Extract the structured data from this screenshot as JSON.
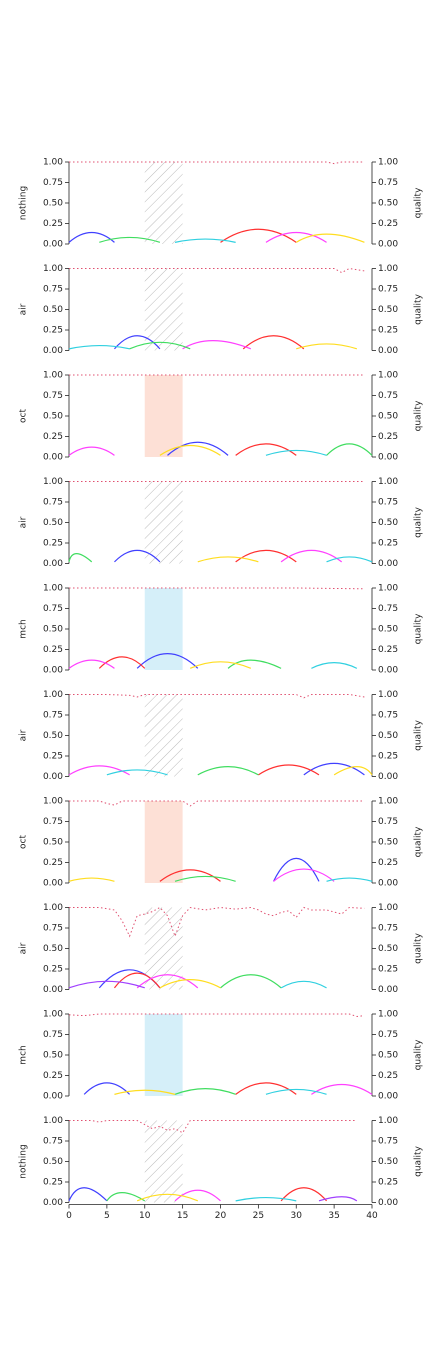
{
  "figure": {
    "y2label": "quality",
    "xticks": [
      "0",
      "5",
      "10",
      "15",
      "20",
      "25",
      "30",
      "35",
      "40"
    ],
    "yticks": [
      "0.00",
      "0.25",
      "0.50",
      "0.75",
      "1.00"
    ]
  },
  "palette": [
    "#4040ff",
    "#ff3030",
    "#ff40ff",
    "#40dd60",
    "#ffdd20",
    "#30d0e0",
    "#a040ff",
    "#ff8c30",
    "#20b080",
    "#d02060"
  ],
  "quality_color": "#e05070",
  "region_colors": {
    "hatch": "#bbbbbb",
    "oct": "#fde0d6",
    "mch": "#d5eff9"
  },
  "chart_data": [
    {
      "type": "line",
      "ylabel": "nothing",
      "xlim": [
        0,
        40
      ],
      "ylim": [
        0,
        1
      ],
      "y2lim": [
        0,
        1
      ],
      "region": {
        "x": [
          10,
          15
        ],
        "style": "hatch"
      },
      "quality": {
        "x": [
          0,
          5,
          10,
          15,
          20,
          25,
          30,
          34,
          35,
          36,
          39
        ],
        "y": [
          1,
          1,
          1,
          1,
          1,
          1,
          1,
          1,
          0.98,
          1,
          1
        ]
      },
      "series": [
        {
          "x": [
            0,
            3,
            6
          ],
          "y": [
            0.02,
            0.14,
            0.02
          ]
        },
        {
          "x": [
            20,
            25,
            30
          ],
          "y": [
            0.02,
            0.18,
            0.02
          ]
        },
        {
          "x": [
            26,
            30,
            34
          ],
          "y": [
            0.02,
            0.14,
            0.02
          ]
        },
        {
          "x": [
            4,
            8,
            12
          ],
          "y": [
            0.02,
            0.08,
            0.02
          ]
        },
        {
          "x": [
            30,
            34,
            39
          ],
          "y": [
            0.02,
            0.12,
            0.02
          ]
        },
        {
          "x": [
            14,
            18,
            22
          ],
          "y": [
            0.02,
            0.06,
            0.02
          ]
        }
      ]
    },
    {
      "type": "line",
      "ylabel": "air",
      "xlim": [
        0,
        40
      ],
      "ylim": [
        0,
        1
      ],
      "y2lim": [
        0,
        1
      ],
      "region": {
        "x": [
          10,
          15
        ],
        "style": "hatch"
      },
      "quality": {
        "x": [
          0,
          5,
          10,
          15,
          20,
          25,
          30,
          35,
          36,
          37,
          39
        ],
        "y": [
          1,
          1,
          1,
          1,
          1,
          1,
          1,
          1,
          0.95,
          1,
          0.97
        ]
      },
      "series": [
        {
          "x": [
            6,
            9,
            12
          ],
          "y": [
            0.02,
            0.18,
            0.02
          ]
        },
        {
          "x": [
            23,
            27,
            31
          ],
          "y": [
            0.02,
            0.18,
            0.02
          ]
        },
        {
          "x": [
            15,
            19,
            24
          ],
          "y": [
            0.02,
            0.12,
            0.02
          ]
        },
        {
          "x": [
            8,
            12,
            16
          ],
          "y": [
            0.02,
            0.1,
            0.02
          ]
        },
        {
          "x": [
            30,
            34,
            38
          ],
          "y": [
            0.02,
            0.08,
            0.02
          ]
        },
        {
          "x": [
            0,
            4,
            8
          ],
          "y": [
            0.02,
            0.06,
            0.02
          ]
        }
      ]
    },
    {
      "type": "line",
      "ylabel": "oct",
      "xlim": [
        0,
        40
      ],
      "ylim": [
        0,
        1
      ],
      "y2lim": [
        0,
        1
      ],
      "region": {
        "x": [
          10,
          15
        ],
        "style": "oct"
      },
      "quality": {
        "x": [
          0,
          10,
          20,
          30,
          39
        ],
        "y": [
          1,
          1,
          1,
          1,
          1
        ]
      },
      "series": [
        {
          "x": [
            13,
            17,
            21
          ],
          "y": [
            0.02,
            0.18,
            0.02
          ]
        },
        {
          "x": [
            22,
            26,
            30
          ],
          "y": [
            0.02,
            0.16,
            0.02
          ]
        },
        {
          "x": [
            0,
            3,
            6
          ],
          "y": [
            0.02,
            0.12,
            0.02
          ]
        },
        {
          "x": [
            34,
            37,
            40
          ],
          "y": [
            0.02,
            0.16,
            0.02
          ]
        },
        {
          "x": [
            12,
            16,
            20
          ],
          "y": [
            0.02,
            0.14,
            0.02
          ]
        },
        {
          "x": [
            26,
            30,
            34
          ],
          "y": [
            0.02,
            0.08,
            0.02
          ]
        }
      ]
    },
    {
      "type": "line",
      "ylabel": "air",
      "xlim": [
        0,
        40
      ],
      "ylim": [
        0,
        1
      ],
      "y2lim": [
        0,
        1
      ],
      "region": {
        "x": [
          10,
          15
        ],
        "style": "hatch"
      },
      "quality": {
        "x": [
          0,
          10,
          20,
          30,
          39
        ],
        "y": [
          1,
          1,
          1,
          1,
          1
        ]
      },
      "series": [
        {
          "x": [
            6,
            9,
            12
          ],
          "y": [
            0.02,
            0.16,
            0.02
          ]
        },
        {
          "x": [
            22,
            26,
            30
          ],
          "y": [
            0.02,
            0.16,
            0.02
          ]
        },
        {
          "x": [
            28,
            32,
            36
          ],
          "y": [
            0.02,
            0.16,
            0.02
          ]
        },
        {
          "x": [
            0,
            1,
            3
          ],
          "y": [
            0.02,
            0.12,
            0.02
          ]
        },
        {
          "x": [
            17,
            21,
            25
          ],
          "y": [
            0.02,
            0.08,
            0.02
          ]
        },
        {
          "x": [
            34,
            37,
            40
          ],
          "y": [
            0.02,
            0.08,
            0.02
          ]
        }
      ]
    },
    {
      "type": "line",
      "ylabel": "mch",
      "xlim": [
        0,
        40
      ],
      "ylim": [
        0,
        1
      ],
      "y2lim": [
        0,
        1
      ],
      "region": {
        "x": [
          10,
          15
        ],
        "style": "mch"
      },
      "quality": {
        "x": [
          0,
          10,
          20,
          30,
          39
        ],
        "y": [
          1,
          1,
          1,
          1,
          0.99
        ]
      },
      "series": [
        {
          "x": [
            9,
            13,
            17
          ],
          "y": [
            0.02,
            0.2,
            0.02
          ]
        },
        {
          "x": [
            4,
            7,
            10
          ],
          "y": [
            0.02,
            0.16,
            0.02
          ]
        },
        {
          "x": [
            0,
            3,
            6
          ],
          "y": [
            0.02,
            0.12,
            0.02
          ]
        },
        {
          "x": [
            21,
            24,
            28
          ],
          "y": [
            0.02,
            0.12,
            0.02
          ]
        },
        {
          "x": [
            16,
            20,
            24
          ],
          "y": [
            0.02,
            0.1,
            0.02
          ]
        },
        {
          "x": [
            32,
            35,
            38
          ],
          "y": [
            0.02,
            0.09,
            0.02
          ]
        }
      ]
    },
    {
      "type": "line",
      "ylabel": "air",
      "xlim": [
        0,
        40
      ],
      "ylim": [
        0,
        1
      ],
      "y2lim": [
        0,
        1
      ],
      "region": {
        "x": [
          10,
          15
        ],
        "style": "hatch"
      },
      "quality": {
        "x": [
          0,
          5,
          8,
          9,
          10,
          14,
          20,
          30,
          31,
          32,
          35,
          37,
          39
        ],
        "y": [
          1,
          1,
          0.99,
          0.97,
          1,
          1,
          1,
          1,
          0.96,
          1,
          1,
          1,
          0.97
        ]
      },
      "series": [
        {
          "x": [
            31,
            35,
            39
          ],
          "y": [
            0.02,
            0.16,
            0.02
          ]
        },
        {
          "x": [
            25,
            29,
            33
          ],
          "y": [
            0.02,
            0.14,
            0.02
          ]
        },
        {
          "x": [
            0,
            4,
            8
          ],
          "y": [
            0.02,
            0.13,
            0.02
          ]
        },
        {
          "x": [
            17,
            21,
            25
          ],
          "y": [
            0.02,
            0.12,
            0.02
          ]
        },
        {
          "x": [
            35,
            38,
            40
          ],
          "y": [
            0.02,
            0.12,
            0.02
          ]
        },
        {
          "x": [
            5,
            9,
            13
          ],
          "y": [
            0.02,
            0.08,
            0.02
          ]
        }
      ]
    },
    {
      "type": "line",
      "ylabel": "oct",
      "xlim": [
        0,
        40
      ],
      "ylim": [
        0,
        1
      ],
      "y2lim": [
        0,
        1
      ],
      "region": {
        "x": [
          10,
          15
        ],
        "style": "oct"
      },
      "quality": {
        "x": [
          0,
          4,
          5,
          6,
          7,
          10,
          15,
          16,
          17,
          20,
          30,
          39
        ],
        "y": [
          1,
          1,
          0.97,
          0.95,
          1,
          1,
          1,
          0.94,
          1,
          1,
          1,
          1
        ]
      },
      "series": [
        {
          "x": [
            27,
            30,
            33
          ],
          "y": [
            0.02,
            0.3,
            0.02
          ]
        },
        {
          "x": [
            12,
            16,
            20
          ],
          "y": [
            0.02,
            0.16,
            0.02
          ]
        },
        {
          "x": [
            27,
            31,
            35
          ],
          "y": [
            0.02,
            0.17,
            0.02
          ]
        },
        {
          "x": [
            14,
            18,
            22
          ],
          "y": [
            0.02,
            0.08,
            0.02
          ]
        },
        {
          "x": [
            0,
            3,
            6
          ],
          "y": [
            0.02,
            0.06,
            0.02
          ]
        },
        {
          "x": [
            34,
            37,
            40
          ],
          "y": [
            0.02,
            0.06,
            0.02
          ]
        }
      ]
    },
    {
      "type": "line",
      "ylabel": "air",
      "xlim": [
        0,
        40
      ],
      "ylim": [
        0,
        1
      ],
      "y2lim": [
        0,
        1
      ],
      "region": {
        "x": [
          10,
          15
        ],
        "style": "hatch"
      },
      "quality": {
        "x": [
          0,
          4,
          6,
          7,
          8,
          9,
          10,
          11,
          12,
          13,
          14,
          15,
          16,
          18,
          20,
          22,
          24,
          25,
          26,
          27,
          28,
          29,
          30,
          31,
          32,
          34,
          36,
          37,
          39
        ],
        "y": [
          1,
          1,
          0.97,
          0.84,
          0.65,
          0.9,
          0.92,
          0.95,
          1,
          0.9,
          0.65,
          0.9,
          1,
          0.97,
          1,
          0.98,
          1,
          0.97,
          0.92,
          0.9,
          0.94,
          0.96,
          0.88,
          1,
          0.97,
          0.97,
          0.92,
          1,
          0.99
        ]
      },
      "series": [
        {
          "x": [
            4,
            8,
            12
          ],
          "y": [
            0.02,
            0.24,
            0.02
          ]
        },
        {
          "x": [
            6,
            9,
            12
          ],
          "y": [
            0.02,
            0.2,
            0.02
          ]
        },
        {
          "x": [
            9,
            13,
            17
          ],
          "y": [
            0.02,
            0.18,
            0.02
          ]
        },
        {
          "x": [
            20,
            24,
            28
          ],
          "y": [
            0.02,
            0.18,
            0.02
          ]
        },
        {
          "x": [
            12,
            16,
            20
          ],
          "y": [
            0.02,
            0.12,
            0.02
          ]
        },
        {
          "x": [
            28,
            31,
            34
          ],
          "y": [
            0.02,
            0.1,
            0.02
          ]
        },
        {
          "x": [
            0,
            5,
            10
          ],
          "y": [
            0.02,
            0.1,
            0.02
          ]
        }
      ]
    },
    {
      "type": "line",
      "ylabel": "mch",
      "xlim": [
        0,
        40
      ],
      "ylim": [
        0,
        1
      ],
      "y2lim": [
        0,
        1
      ],
      "region": {
        "x": [
          10,
          15
        ],
        "style": "mch"
      },
      "quality": {
        "x": [
          0,
          2,
          4,
          10,
          20,
          30,
          37,
          38,
          39
        ],
        "y": [
          0.99,
          0.98,
          1,
          1,
          1,
          1,
          1,
          0.97,
          0.98
        ]
      },
      "series": [
        {
          "x": [
            2,
            5,
            8
          ],
          "y": [
            0.02,
            0.16,
            0.02
          ]
        },
        {
          "x": [
            22,
            26,
            30
          ],
          "y": [
            0.02,
            0.16,
            0.02
          ]
        },
        {
          "x": [
            32,
            36,
            40
          ],
          "y": [
            0.02,
            0.14,
            0.02
          ]
        },
        {
          "x": [
            14,
            18,
            22
          ],
          "y": [
            0.02,
            0.09,
            0.02
          ]
        },
        {
          "x": [
            6,
            10,
            14
          ],
          "y": [
            0.02,
            0.07,
            0.02
          ]
        },
        {
          "x": [
            26,
            30,
            34
          ],
          "y": [
            0.02,
            0.08,
            0.02
          ]
        }
      ]
    },
    {
      "type": "line",
      "ylabel": "nothing",
      "xlim": [
        0,
        40
      ],
      "ylim": [
        0,
        1
      ],
      "y2lim": [
        0,
        1
      ],
      "region": {
        "x": [
          10,
          15
        ],
        "style": "hatch"
      },
      "quality": {
        "x": [
          0,
          3,
          4,
          5,
          9,
          10,
          11,
          12,
          13,
          14,
          15,
          16,
          20,
          30,
          38
        ],
        "y": [
          1,
          1,
          0.98,
          1,
          1,
          0.95,
          0.9,
          0.93,
          0.88,
          0.9,
          0.85,
          1,
          1,
          1,
          1
        ]
      },
      "series": [
        {
          "x": [
            0,
            2,
            5
          ],
          "y": [
            0.02,
            0.18,
            0.02
          ]
        },
        {
          "x": [
            28,
            31,
            34
          ],
          "y": [
            0.02,
            0.18,
            0.02
          ]
        },
        {
          "x": [
            14,
            17,
            20
          ],
          "y": [
            0.02,
            0.15,
            0.02
          ]
        },
        {
          "x": [
            5,
            7,
            10
          ],
          "y": [
            0.02,
            0.12,
            0.02
          ]
        },
        {
          "x": [
            9,
            13,
            17
          ],
          "y": [
            0.02,
            0.1,
            0.02
          ]
        },
        {
          "x": [
            22,
            26,
            30
          ],
          "y": [
            0.02,
            0.06,
            0.02
          ]
        },
        {
          "x": [
            33,
            36,
            38
          ],
          "y": [
            0.02,
            0.07,
            0.02
          ]
        }
      ]
    }
  ]
}
